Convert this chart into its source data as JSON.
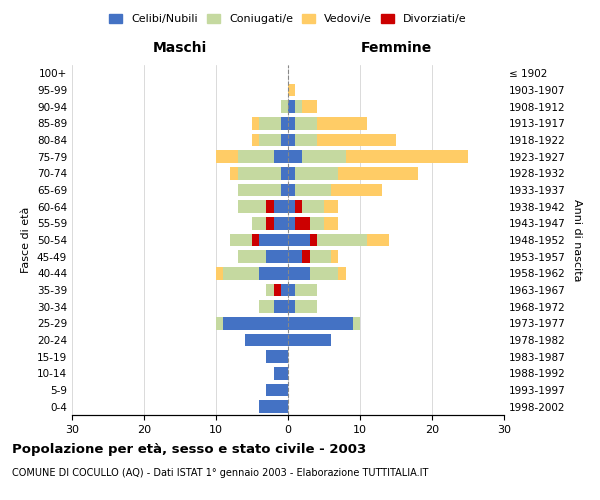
{
  "age_groups": [
    "0-4",
    "5-9",
    "10-14",
    "15-19",
    "20-24",
    "25-29",
    "30-34",
    "35-39",
    "40-44",
    "45-49",
    "50-54",
    "55-59",
    "60-64",
    "65-69",
    "70-74",
    "75-79",
    "80-84",
    "85-89",
    "90-94",
    "95-99",
    "100+"
  ],
  "birth_years": [
    "1998-2002",
    "1993-1997",
    "1988-1992",
    "1983-1987",
    "1978-1982",
    "1973-1977",
    "1968-1972",
    "1963-1967",
    "1958-1962",
    "1953-1957",
    "1948-1952",
    "1943-1947",
    "1938-1942",
    "1933-1937",
    "1928-1932",
    "1923-1927",
    "1918-1922",
    "1913-1917",
    "1908-1912",
    "1903-1907",
    "≤ 1902"
  ],
  "maschi": {
    "celibi": [
      4,
      3,
      2,
      3,
      6,
      9,
      2,
      1,
      4,
      3,
      4,
      2,
      2,
      1,
      1,
      2,
      1,
      1,
      0,
      0,
      0
    ],
    "coniugati": [
      0,
      0,
      0,
      0,
      0,
      1,
      2,
      2,
      5,
      4,
      4,
      3,
      5,
      6,
      6,
      5,
      3,
      3,
      1,
      0,
      0
    ],
    "vedovi": [
      0,
      0,
      0,
      0,
      0,
      0,
      0,
      0,
      1,
      0,
      0,
      0,
      0,
      0,
      1,
      3,
      1,
      1,
      0,
      0,
      0
    ],
    "divorziati": [
      0,
      0,
      0,
      0,
      0,
      0,
      0,
      1,
      0,
      0,
      1,
      1,
      1,
      0,
      0,
      0,
      0,
      0,
      0,
      0,
      0
    ]
  },
  "femmine": {
    "nubili": [
      0,
      0,
      0,
      0,
      6,
      9,
      1,
      1,
      3,
      2,
      3,
      1,
      1,
      1,
      1,
      2,
      1,
      1,
      1,
      0,
      0
    ],
    "coniugate": [
      0,
      0,
      0,
      0,
      0,
      1,
      3,
      3,
      4,
      4,
      8,
      4,
      4,
      5,
      6,
      6,
      3,
      3,
      1,
      0,
      0
    ],
    "vedove": [
      0,
      0,
      0,
      0,
      0,
      0,
      0,
      0,
      1,
      1,
      3,
      2,
      2,
      7,
      11,
      17,
      11,
      7,
      2,
      1,
      0
    ],
    "divorziate": [
      0,
      0,
      0,
      0,
      0,
      0,
      0,
      0,
      0,
      1,
      1,
      2,
      1,
      0,
      0,
      0,
      0,
      0,
      0,
      0,
      0
    ]
  },
  "colors": {
    "celibi": "#4472C4",
    "coniugati": "#C5D9A0",
    "vedovi": "#FFCC66",
    "divorziati": "#CC0000"
  },
  "title": "Popolazione per età, sesso e stato civile - 2003",
  "subtitle": "COMUNE DI COCULLO (AQ) - Dati ISTAT 1° gennaio 2003 - Elaborazione TUTTITALIA.IT",
  "xlabel_left": "Maschi",
  "xlabel_right": "Femmine",
  "ylabel_left": "Fasce di età",
  "ylabel_right": "Anni di nascita",
  "xlim": 30,
  "background_color": "#ffffff",
  "grid_color": "#cccccc"
}
